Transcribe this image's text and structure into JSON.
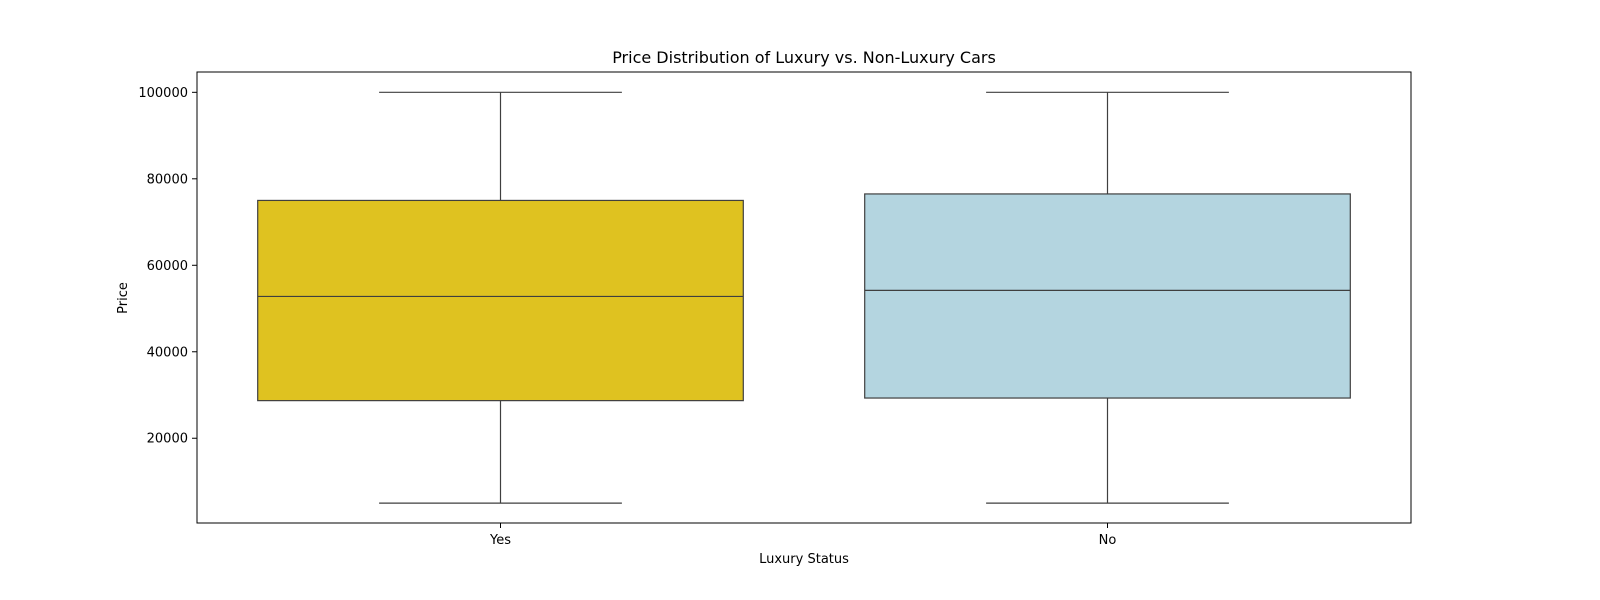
{
  "chart_data": {
    "type": "box",
    "title": "Price Distribution of Luxury vs. Non-Luxury Cars",
    "xlabel": "Luxury Status",
    "ylabel": "Price",
    "categories": [
      "Yes",
      "No"
    ],
    "boxes": [
      {
        "category": "Yes",
        "whisker_low": 5000,
        "q1": 28700,
        "median": 52800,
        "q3": 75000,
        "whisker_high": 100000,
        "color": "#dfc220"
      },
      {
        "category": "No",
        "whisker_low": 5000,
        "q1": 29300,
        "median": 54200,
        "q3": 76500,
        "whisker_high": 100000,
        "color": "#b4d5e0"
      }
    ],
    "yticks": [
      20000,
      40000,
      60000,
      80000,
      100000
    ],
    "ytick_labels": [
      "20000",
      "40000",
      "60000",
      "80000",
      "100000"
    ],
    "ylim": [
      400,
      104700
    ],
    "grid": false,
    "line_color": "#3f3f3f"
  }
}
